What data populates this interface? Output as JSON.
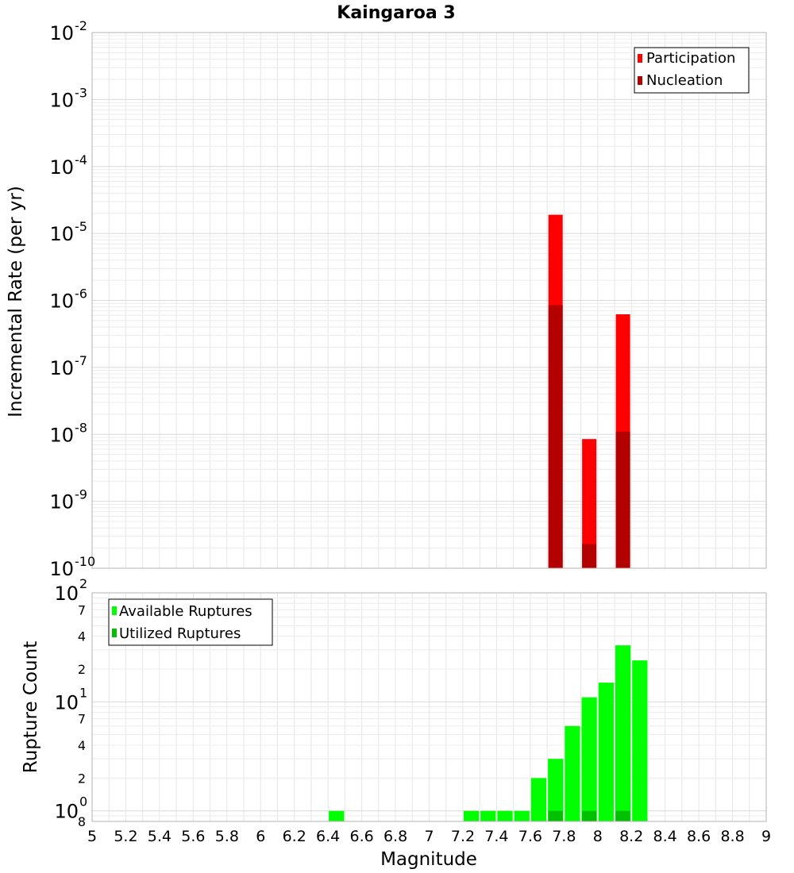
{
  "chart_data": [
    {
      "type": "bar",
      "title": "Kaingaroa 3",
      "ylabel": "Incremental Rate (per yr)",
      "xlabel": "",
      "x_ticks": [
        "5",
        "5.2",
        "5.4",
        "5.6",
        "5.8",
        "6",
        "6.2",
        "6.4",
        "6.6",
        "6.8",
        "7",
        "7.2",
        "7.4",
        "7.6",
        "7.8",
        "8",
        "8.2",
        "8.4",
        "8.6",
        "8.8",
        "9"
      ],
      "y_scale": "log",
      "ylim": [
        1e-10,
        0.01
      ],
      "y_tick_bases": [
        "10",
        "10",
        "10",
        "10",
        "10",
        "10",
        "10",
        "10",
        "10"
      ],
      "y_tick_exponents": [
        "-2",
        "-3",
        "-4",
        "-5",
        "-6",
        "-7",
        "-8",
        "-9",
        "-10"
      ],
      "xlim": [
        5,
        9
      ],
      "bin_width": 0.1,
      "legend_position": "top-right",
      "grid": true,
      "series": [
        {
          "name": "Participation",
          "color": "#ff0000",
          "x": [
            7.75,
            7.95,
            8.15
          ],
          "values": [
            1.9e-05,
            8.5e-09,
            6.2e-07
          ]
        },
        {
          "name": "Nucleation",
          "color": "#b30000",
          "x": [
            7.75,
            7.95,
            8.15
          ],
          "values": [
            8.5e-07,
            2.3e-10,
            1.1e-08
          ]
        }
      ]
    },
    {
      "type": "bar",
      "title": "",
      "ylabel": "Rupture Count",
      "xlabel": "Magnitude",
      "x_ticks": [
        "5",
        "5.2",
        "5.4",
        "5.6",
        "5.8",
        "6",
        "6.2",
        "6.4",
        "6.6",
        "6.8",
        "7",
        "7.2",
        "7.4",
        "7.6",
        "7.8",
        "8",
        "8.2",
        "8.4",
        "8.6",
        "8.8",
        "9"
      ],
      "y_scale": "log",
      "ylim": [
        0.8,
        100
      ],
      "y_major_ticks": [
        {
          "base": "10",
          "exp": "2"
        },
        {
          "base": "10",
          "exp": "1"
        },
        {
          "base": "10",
          "exp": "0"
        }
      ],
      "y_minor_labels": [
        "7",
        "4",
        "2",
        "7",
        "4",
        "2",
        "8"
      ],
      "xlim": [
        5,
        9
      ],
      "bin_width": 0.1,
      "legend_position": "top-left",
      "grid": true,
      "series": [
        {
          "name": "Available Ruptures",
          "color": "#00ff00",
          "x": [
            6.45,
            7.25,
            7.35,
            7.45,
            7.55,
            7.65,
            7.75,
            7.85,
            7.95,
            8.05,
            8.15,
            8.25
          ],
          "values": [
            1,
            1,
            1,
            1,
            1,
            2,
            3,
            6,
            11,
            15,
            33,
            24
          ]
        },
        {
          "name": "Utilized Ruptures",
          "color": "#00c000",
          "x": [
            7.75,
            7.95,
            8.15
          ],
          "values": [
            1,
            1,
            1
          ]
        }
      ]
    }
  ]
}
